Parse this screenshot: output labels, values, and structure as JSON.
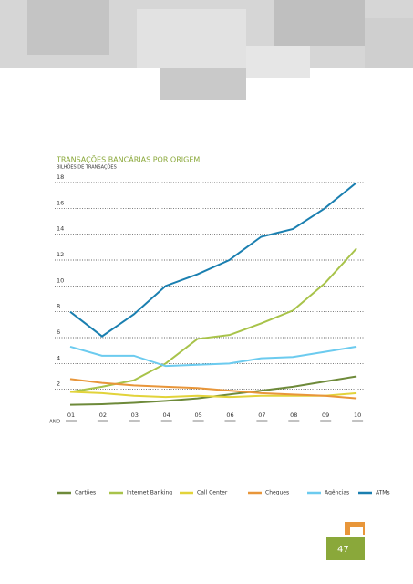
{
  "chart_data": {
    "type": "line",
    "title": "TRANSAÇÕES BANCÁRIAS POR ORIGEM",
    "subtitle": "BILHÕES DE TRANSAÇÕES",
    "x_label": "ANO",
    "categories": [
      "01",
      "02",
      "03",
      "04",
      "05",
      "06",
      "07",
      "08",
      "09",
      "10"
    ],
    "series": [
      {
        "name": "Cartões",
        "color": "#6e8a3a",
        "values": [
          0.8,
          0.85,
          0.95,
          1.1,
          1.3,
          1.6,
          1.9,
          2.2,
          2.6,
          3.0
        ]
      },
      {
        "name": "Internet Banking",
        "color": "#a8c34a",
        "values": [
          1.8,
          2.2,
          2.7,
          4.0,
          5.9,
          6.2,
          7.1,
          8.1,
          10.2,
          12.9
        ]
      },
      {
        "name": "Call Center",
        "color": "#e2d33a",
        "values": [
          1.8,
          1.7,
          1.5,
          1.4,
          1.5,
          1.4,
          1.5,
          1.5,
          1.5,
          1.7
        ]
      },
      {
        "name": "Cheques",
        "color": "#e8963a",
        "values": [
          2.8,
          2.5,
          2.3,
          2.2,
          2.1,
          1.9,
          1.7,
          1.6,
          1.5,
          1.3
        ]
      },
      {
        "name": "Agências",
        "color": "#6ccbef",
        "values": [
          5.3,
          4.6,
          4.6,
          3.8,
          3.9,
          4.0,
          4.4,
          4.5,
          4.9,
          5.3
        ]
      },
      {
        "name": "ATMs",
        "color": "#1a7fb0",
        "values": [
          8.0,
          6.1,
          7.8,
          10.0,
          10.9,
          12.0,
          13.8,
          14.4,
          16.0,
          18.0
        ]
      }
    ],
    "ylim": [
      0,
      18
    ],
    "yticks": [
      2,
      4,
      6,
      8,
      10,
      12,
      14,
      16,
      18
    ],
    "grid": true
  },
  "page_number": "47"
}
